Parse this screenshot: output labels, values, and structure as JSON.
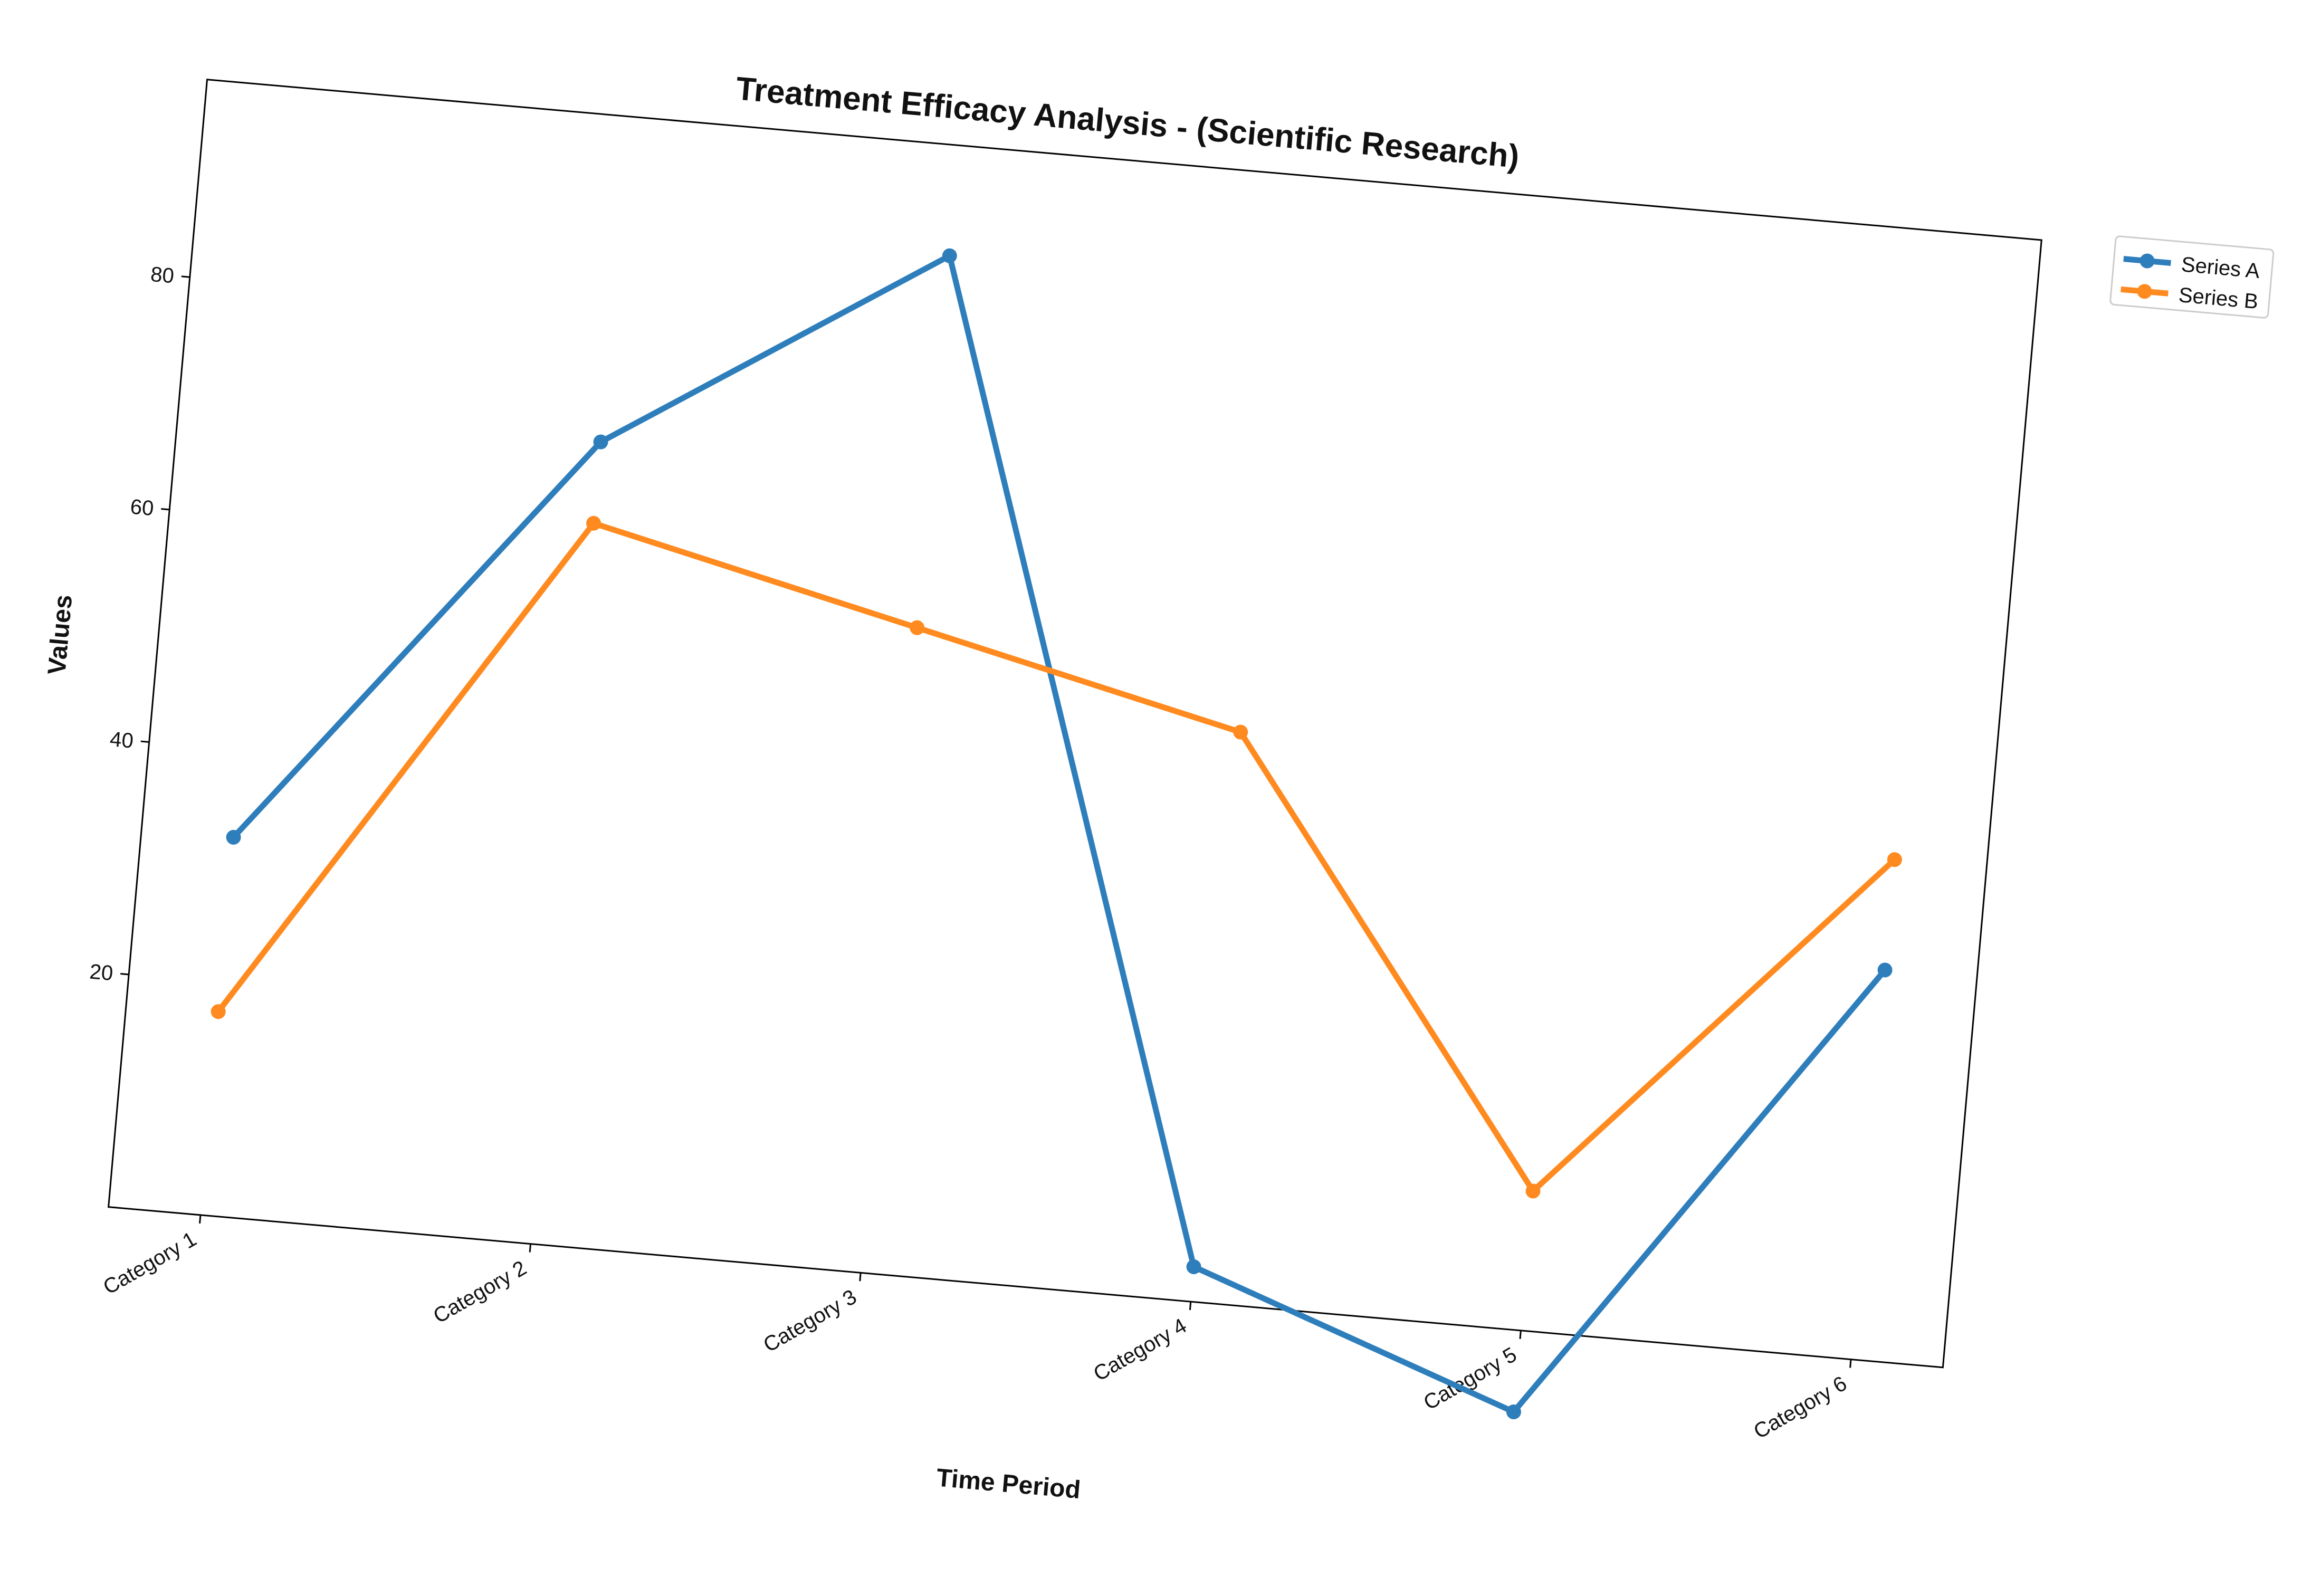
{
  "chart_data": {
    "type": "line",
    "title": "Treatment Efficacy Analysis - (Scientific Research)",
    "xlabel": "Time Period",
    "ylabel": "Values",
    "categories": [
      "Category 1",
      "Category 2",
      "Category 3",
      "Category 4",
      "Category 5",
      "Category 6"
    ],
    "yticks": [
      20,
      40,
      60,
      80
    ],
    "ylim": [
      0,
      97
    ],
    "grid": false,
    "legend_position": "upper-right-outside",
    "series": [
      {
        "name": "Series A",
        "color": "#2e7ebc",
        "values": [
          32.5,
          69.0,
          87.5,
          3.0,
          -7.0,
          33.5
        ]
      },
      {
        "name": "Series B",
        "color": "#ff8a1f",
        "values": [
          17.5,
          62.0,
          55.5,
          49.0,
          12.0,
          43.0
        ]
      }
    ]
  }
}
